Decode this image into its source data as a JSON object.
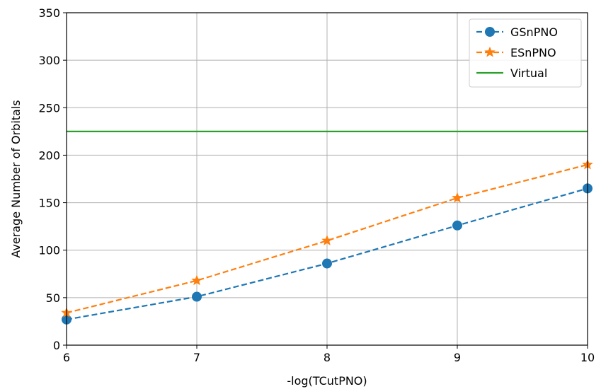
{
  "chart_data": {
    "type": "line",
    "xlabel": "-log(TCutPNO)",
    "ylabel": "Average Number of Orbitals",
    "xlim": [
      6,
      10
    ],
    "ylim": [
      0,
      350
    ],
    "xticks": [
      6,
      7,
      8,
      9,
      10
    ],
    "yticks": [
      0,
      50,
      100,
      150,
      200,
      250,
      300,
      350
    ],
    "grid": true,
    "legend_position": "top-right",
    "series": [
      {
        "name": "GSnPNO",
        "x": [
          6,
          7,
          8,
          9,
          10
        ],
        "y": [
          27,
          51,
          86,
          126,
          165
        ],
        "color": "#1f77b4",
        "linestyle": "dashed",
        "marker": "circle"
      },
      {
        "name": "ESnPNO",
        "x": [
          6,
          7,
          8,
          9,
          10
        ],
        "y": [
          34,
          68,
          110,
          155,
          190
        ],
        "color": "#ff7f0e",
        "linestyle": "dashed",
        "marker": "star"
      },
      {
        "name": "Virtual",
        "x": [
          6,
          10
        ],
        "y": [
          225,
          225
        ],
        "color": "#2ca02c",
        "linestyle": "solid",
        "marker": "none"
      }
    ]
  }
}
